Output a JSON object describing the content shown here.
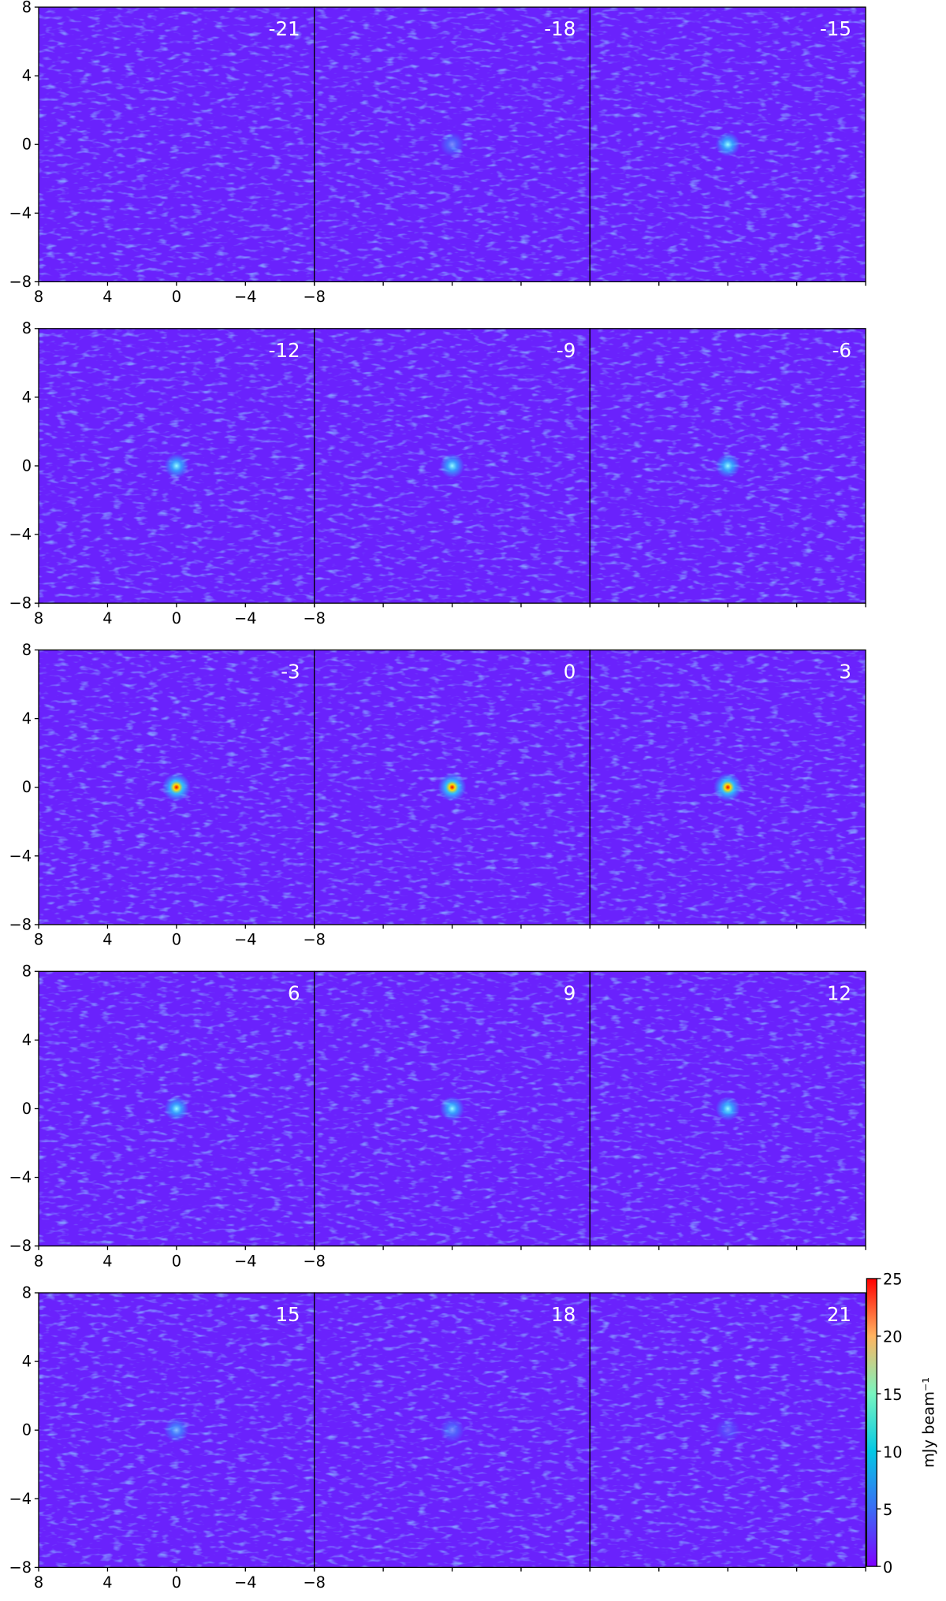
{
  "chart_data": {
    "type": "channel_map",
    "panels": [
      {
        "label": "-21"
      },
      {
        "label": "-18"
      },
      {
        "label": "-15"
      },
      {
        "label": "-12"
      },
      {
        "label": "-9"
      },
      {
        "label": "-6"
      },
      {
        "label": "-3"
      },
      {
        "label": "0"
      },
      {
        "label": "3"
      },
      {
        "label": "6"
      },
      {
        "label": "9"
      },
      {
        "label": "12"
      },
      {
        "label": "15"
      },
      {
        "label": "18"
      },
      {
        "label": "21"
      }
    ],
    "xlim": [
      8,
      -8
    ],
    "xticks": [
      8,
      4,
      0,
      {
        "value": -4,
        "label": "−4"
      },
      {
        "value": -8,
        "label": "−8"
      }
    ],
    "ylim": [
      -8,
      8
    ],
    "yticks": [
      {
        "value": -8,
        "label": "−8"
      },
      {
        "value": -4,
        "label": "−4"
      },
      0,
      4,
      8
    ],
    "colorbar": {
      "label": "mJy beam⁻¹",
      "lim": [
        0,
        25
      ],
      "ticks": [
        0,
        5,
        10,
        15,
        20,
        25
      ]
    }
  }
}
